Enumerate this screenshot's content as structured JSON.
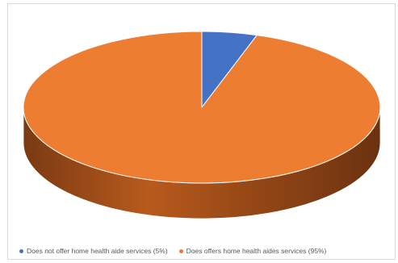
{
  "chart_data": {
    "type": "pie",
    "style": "3d",
    "categories": [
      "Does not offer home health aide services (5%)",
      "Does offers home health aides services (95%)"
    ],
    "values": [
      5,
      95
    ],
    "colors": [
      "#4472c4",
      "#ed7d31"
    ],
    "legend_position": "bottom",
    "title": ""
  }
}
